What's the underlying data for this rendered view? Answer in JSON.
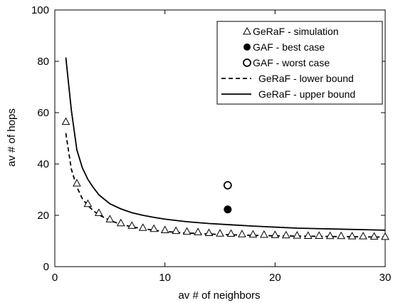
{
  "chart_data": {
    "type": "line",
    "xlabel": "av # of neighbors",
    "ylabel": "av # of hops",
    "xlim": [
      0,
      30
    ],
    "ylim": [
      0,
      100
    ],
    "xticks": [
      0,
      10,
      20,
      30
    ],
    "yticks": [
      0,
      20,
      40,
      60,
      80,
      100
    ],
    "grid": false,
    "legend_position": "top-right",
    "series": [
      {
        "name": "GeRaF - simulation",
        "style": "triangle-open-markers",
        "x": [
          1,
          2,
          3,
          4,
          5,
          6,
          7,
          8,
          9,
          10,
          11,
          12,
          13,
          14,
          15,
          16,
          17,
          18,
          19,
          20,
          21,
          22,
          23,
          24,
          25,
          26,
          27,
          28,
          29,
          30
        ],
        "y": [
          56.5,
          32.5,
          24.5,
          21,
          18.5,
          17,
          16,
          15.2,
          14.8,
          14.3,
          14,
          13.7,
          13.5,
          13.2,
          13,
          12.9,
          12.7,
          12.6,
          12.5,
          12.4,
          12.3,
          12.2,
          12.1,
          12.1,
          12,
          12,
          11.9,
          11.9,
          11.8,
          11.7
        ]
      },
      {
        "name": "GAF - best case",
        "style": "filled-circle",
        "x": [
          15.7
        ],
        "y": [
          22.3
        ]
      },
      {
        "name": "GAF - worst case",
        "style": "open-circle",
        "x": [
          15.7
        ],
        "y": [
          31.7
        ]
      },
      {
        "name": "GeRaF - lower bound",
        "style": "dashed-line",
        "x": [
          1,
          1.5,
          2,
          2.5,
          3,
          3.5,
          4,
          5,
          6,
          7,
          8,
          9,
          10,
          12,
          14,
          16,
          18,
          20,
          22,
          24,
          26,
          28,
          30
        ],
        "y": [
          52,
          38,
          31,
          26.5,
          23.8,
          21.8,
          20.2,
          18,
          16.5,
          15.5,
          14.8,
          14.2,
          13.7,
          13.1,
          12.7,
          12.4,
          12.2,
          12,
          11.9,
          11.8,
          11.7,
          11.6,
          11.5
        ]
      },
      {
        "name": "GeRaF - upper bound",
        "style": "solid-line",
        "x": [
          1,
          1.5,
          2,
          2.5,
          3,
          3.5,
          4,
          5,
          6,
          7,
          8,
          9,
          10,
          12,
          14,
          16,
          18,
          20,
          22,
          24,
          26,
          28,
          30
        ],
        "y": [
          81.5,
          61,
          45.5,
          38.5,
          34,
          30.8,
          28,
          24.5,
          22.5,
          21,
          20,
          19.2,
          18.5,
          17.5,
          16.8,
          16.3,
          15.8,
          15.4,
          15,
          14.8,
          14.6,
          14.4,
          14.2
        ]
      }
    ]
  }
}
